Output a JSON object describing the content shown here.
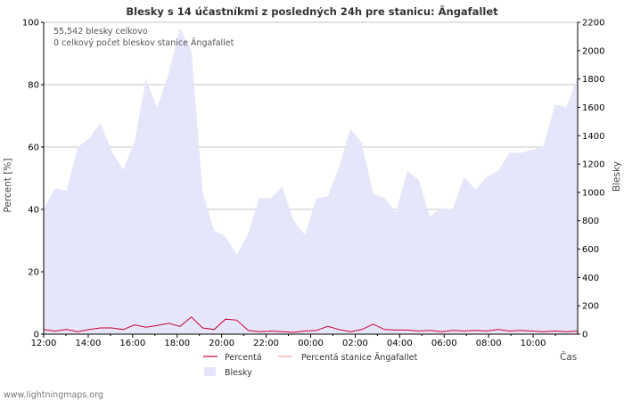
{
  "chart_data": {
    "type": "area",
    "title": "Blesky s 14 účastníkmi z posledných 24h pre stanicu: Ängafallet",
    "info_lines": [
      "55,542 blesky celkovo",
      "0 celkový počet bleskov stanice Ängafallet"
    ],
    "xlabel": "Čas",
    "ylabel_left": "Percent   [%]",
    "ylabel_right": "Blesky",
    "ylim_left": [
      0,
      100
    ],
    "ylim_right": [
      0,
      2200
    ],
    "left_ticks": [
      0,
      20,
      40,
      60,
      80,
      100
    ],
    "right_ticks": [
      0,
      200,
      400,
      600,
      800,
      1000,
      1200,
      1400,
      1600,
      1800,
      2000,
      2200
    ],
    "x_tick_labels": [
      "12:00",
      "14:00",
      "16:00",
      "18:00",
      "20:00",
      "22:00",
      "00:00",
      "02:00",
      "04:00",
      "06:00",
      "08:00",
      "10:00"
    ],
    "series": [
      {
        "name": "Blesky",
        "axis": "right",
        "color": "#e6e6fa",
        "values": [
          880,
          1030,
          1010,
          1320,
          1380,
          1490,
          1290,
          1160,
          1360,
          1800,
          1600,
          1840,
          2160,
          2000,
          1000,
          730,
          690,
          560,
          710,
          960,
          960,
          1040,
          800,
          700,
          960,
          970,
          1180,
          1450,
          1350,
          990,
          960,
          860,
          1150,
          1090,
          830,
          890,
          880,
          1110,
          1020,
          1110,
          1150,
          1280,
          1280,
          1300,
          1330,
          1620,
          1600,
          1810
        ]
      },
      {
        "name": "Percentá",
        "axis": "left",
        "color": "#cc0033",
        "values": [
          1.5,
          1.0,
          1.5,
          0.8,
          1.5,
          2.0,
          2.0,
          1.5,
          3.0,
          2.2,
          2.8,
          3.5,
          2.5,
          5.5,
          2.0,
          1.5,
          4.8,
          4.5,
          1.2,
          0.8,
          1.0,
          0.8,
          0.6,
          1.0,
          1.2,
          2.5,
          1.5,
          0.8,
          1.5,
          3.2,
          1.5,
          1.3,
          1.3,
          1.0,
          1.2,
          0.8,
          1.2,
          1.0,
          1.2,
          1.0,
          1.5,
          1.0,
          1.2,
          1.0,
          0.8,
          1.0,
          0.8,
          1.0
        ]
      },
      {
        "name": "Percentá stanice Ängafallet",
        "axis": "left",
        "color": "#f4a0a0",
        "values": [
          0,
          0,
          0,
          0,
          0,
          0,
          0,
          0,
          0,
          0,
          0,
          0,
          0,
          0,
          0,
          0,
          0,
          0,
          0,
          0,
          0,
          0,
          0,
          0,
          0,
          0,
          0,
          0,
          0,
          0,
          0,
          0,
          0,
          0,
          0,
          0,
          0,
          0,
          0,
          0,
          0,
          0,
          0,
          0,
          0,
          0,
          0,
          0
        ]
      }
    ],
    "legend": [
      "Percentá",
      "Percentá stanice Ängafallet",
      "Blesky"
    ]
  },
  "footer": "www.lightningmaps.org"
}
